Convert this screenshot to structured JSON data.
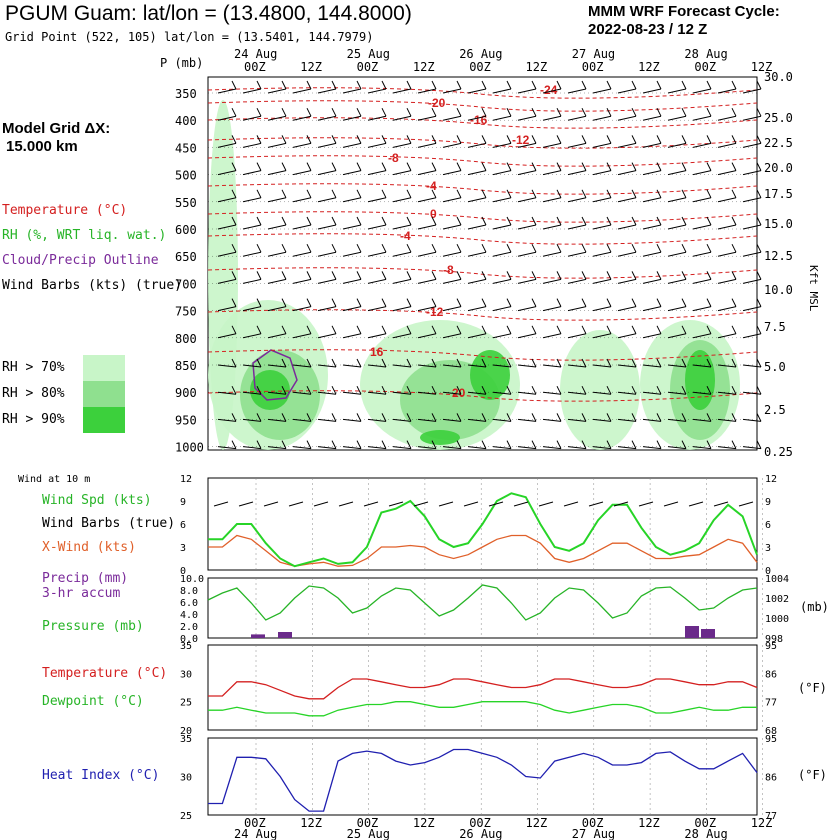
{
  "header": {
    "title": "PGUM Guam:  lat/lon = (13.4800, 144.8000)",
    "gridpoint": "Grid Point (522, 105) lat/lon = (13.5401, 144.7979)",
    "model": "MMM WRF Forecast Cycle:",
    "cycle": "2022-08-23 / 12  Z",
    "grid_label": "Model Grid ΔX:",
    "grid_value": "15.000 km"
  },
  "time_axis": {
    "dates": [
      "24 Aug",
      "25 Aug",
      "26 Aug",
      "27 Aug",
      "28 Aug"
    ],
    "hours": [
      "00Z",
      "12Z",
      "00Z",
      "12Z",
      "00Z",
      "12Z",
      "00Z",
      "12Z",
      "00Z",
      "12Z"
    ]
  },
  "legend": {
    "temperature": "Temperature (°C)",
    "rh": "RH (%, WRT liq. wat.)",
    "cloud": "Cloud/Precip Outline",
    "barbs": "Wind Barbs (kts) (true)",
    "rh70": "RH > 70%",
    "rh80": "RH > 80%",
    "rh90": "RH > 90%",
    "colors": {
      "rh70": "#c8f5c8",
      "rh80": "#8fe08f",
      "rh90": "#3cd03c",
      "temp": "#d42020",
      "cloud": "#7a2a9a"
    }
  },
  "upper": {
    "p_label": "P (mb)",
    "p_ticks": [
      "350",
      "400",
      "450",
      "500",
      "550",
      "600",
      "650",
      "700",
      "750",
      "800",
      "850",
      "900",
      "950",
      "1000"
    ],
    "kft_ticks": [
      "30.0",
      "25.0",
      "22.5",
      "20.0",
      "17.5",
      "15.0",
      "12.5",
      "10.0",
      "7.5",
      "5.0",
      "2.5",
      "0.25"
    ],
    "kft_label": "Kft MSL",
    "temp_labels": [
      "-24",
      "-20",
      "-16",
      "-12",
      "-8",
      "-4",
      "0",
      "-4",
      "-8",
      "-12",
      "16",
      "20"
    ]
  },
  "panels": {
    "wind_title": "Wind at 10 m",
    "wind_spd": "Wind Spd (kts)",
    "wind_barbs": "Wind Barbs (true)",
    "xwind": "X-Wind (kts)",
    "precip": "Precip (mm)",
    "precip2": "3-hr accum",
    "pressure": "Pressure (mb)",
    "temp": "Temperature (°C)",
    "dew": "Dewpoint (°C)",
    "heat": "Heat Index (°C)",
    "mb": "(mb)",
    "degF": "(°F)",
    "degF2": "(°F)",
    "wind_ticks_l": [
      "12",
      "9",
      "6",
      "3",
      "0"
    ],
    "wind_ticks_r": [
      "12",
      "9",
      "6",
      "3",
      "0"
    ],
    "precip_ticks": [
      "10.0",
      "8.0",
      "6.0",
      "4.0",
      "2.0",
      "0.0"
    ],
    "pres_ticks": [
      "1004",
      "1002",
      "1000",
      "998"
    ],
    "temp_ticks": [
      "35",
      "30",
      "25",
      "20"
    ],
    "tf_ticks": [
      "95",
      "86",
      "77",
      "68"
    ],
    "heat_ticks": [
      "35",
      "30",
      "25"
    ],
    "hf_ticks": [
      "95",
      "86",
      "77"
    ]
  },
  "chart_data": [
    {
      "type": "line",
      "title": "Wind at 10 m",
      "series": [
        {
          "name": "Wind Spd (kts)",
          "values": [
            4,
            4,
            6,
            6,
            3.5,
            1.5,
            0.5,
            1,
            1.5,
            0.8,
            1,
            3,
            7.5,
            8,
            9,
            7,
            4,
            3,
            3.5,
            6,
            9,
            10,
            9.5,
            6,
            3,
            2.5,
            3.5,
            6.5,
            8.5,
            8.5,
            5.5,
            3,
            2,
            2.5,
            3.5,
            6.5,
            8.5,
            7,
            2
          ]
        },
        {
          "name": "X-Wind (kts)",
          "values": [
            3,
            3,
            4.5,
            4,
            2.5,
            1,
            0.5,
            0.8,
            1,
            0.5,
            0.6,
            1.5,
            3,
            3,
            3.2,
            3,
            2,
            1.5,
            2,
            3,
            4,
            4.5,
            4.5,
            3.5,
            1.5,
            1,
            1.5,
            2.5,
            3.5,
            3.5,
            2.5,
            1.5,
            1.5,
            1.8,
            2,
            3,
            4,
            3.5,
            1
          ]
        }
      ],
      "ylim": [
        0,
        12
      ]
    },
    {
      "type": "bar",
      "title": "Precip (mm) 3-hr accum",
      "x": [
        "24 Aug 00Z",
        "24 Aug 09Z",
        "27 Aug 21Z",
        "28 Aug 00Z"
      ],
      "values": [
        0.6,
        1.0,
        2.0,
        1.5
      ],
      "ylim": [
        0,
        10
      ]
    },
    {
      "type": "line",
      "title": "Pressure (mb)",
      "values": [
        1001.8,
        1002.5,
        1003.0,
        1001.5,
        999.8,
        1000.5,
        1002.0,
        1003.2,
        1003.0,
        1002.0,
        1000.5,
        1001.0,
        1002.2,
        1003.0,
        1002.8,
        1001.5,
        1000.2,
        1000.8,
        1002.0,
        1003.3,
        1003.0,
        1001.5,
        999.8,
        1000.5,
        1002.0,
        1003.0,
        1002.8,
        1001.5,
        1000.0,
        1000.5,
        1002.2,
        1003.0,
        1003.1,
        1002.0,
        1000.8,
        1001.0,
        1002.0,
        1002.8,
        1003.0
      ],
      "ylim": [
        998,
        1004
      ]
    },
    {
      "type": "line",
      "title": "Temperature / Dewpoint (°C)",
      "series": [
        {
          "name": "Temperature (°C)",
          "values": [
            26,
            26,
            28.5,
            28.5,
            28,
            27,
            26,
            25.5,
            25.5,
            27.5,
            29,
            29,
            28.5,
            28,
            27.5,
            27.5,
            28,
            29,
            29,
            28.5,
            28,
            27.5,
            27.5,
            28,
            29,
            29,
            28.5,
            28,
            27.5,
            27.5,
            28,
            29,
            29,
            28.5,
            28,
            28,
            28.5,
            28.5,
            27.5
          ]
        },
        {
          "name": "Dewpoint (°C)",
          "values": [
            23.5,
            23.5,
            24,
            23.5,
            23,
            23,
            23,
            22.5,
            22.5,
            23.5,
            24,
            24.5,
            24.5,
            25,
            25,
            24.5,
            24,
            24,
            24.5,
            25,
            25,
            25,
            25,
            24.5,
            23.5,
            23,
            23.5,
            24,
            24.5,
            24.5,
            24,
            23,
            23,
            23.5,
            24,
            23.5,
            23.5,
            24,
            24
          ]
        }
      ],
      "ylim": [
        20,
        35
      ]
    },
    {
      "type": "line",
      "title": "Heat Index (°C)",
      "values": [
        26.5,
        26.5,
        32.5,
        32.5,
        32.3,
        30,
        27,
        25.5,
        25.5,
        32,
        33,
        33.3,
        33,
        32,
        31.5,
        31.8,
        32.5,
        33.5,
        33.5,
        33,
        32.5,
        31.5,
        30,
        29.8,
        32,
        32.5,
        33,
        32.5,
        31.5,
        31.5,
        31.8,
        33,
        33.2,
        32,
        31,
        31,
        32,
        33,
        30.5
      ],
      "ylim": [
        25,
        35
      ]
    }
  ]
}
